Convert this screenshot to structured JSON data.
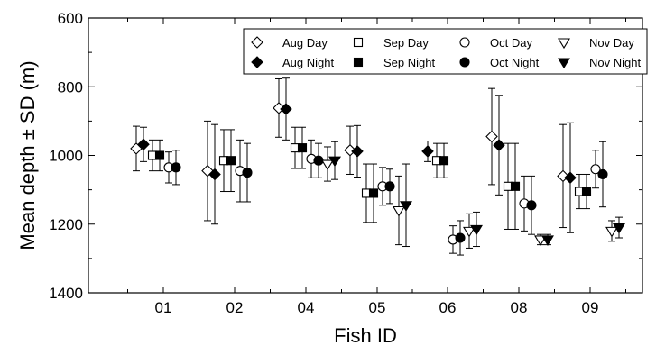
{
  "chart_data": {
    "type": "scatter",
    "title": "",
    "xlabel": "Fish ID",
    "ylabel": "Mean depth ± SD (m)",
    "categories": [
      "01",
      "02",
      "04",
      "05",
      "06",
      "08",
      "09"
    ],
    "ylim": [
      600,
      1400
    ],
    "y_inverted": true,
    "yticks": [
      600,
      800,
      1000,
      1200,
      1400
    ],
    "grid": false,
    "legend_position": "top-right",
    "series": [
      {
        "name": "Aug Day",
        "marker": "diamond",
        "filled": false,
        "mean": [
          980,
          1045,
          862,
          985,
          null,
          945,
          1060
        ],
        "sd": [
          65,
          145,
          85,
          70,
          null,
          140,
          150
        ]
      },
      {
        "name": "Aug Night",
        "marker": "diamond",
        "filled": true,
        "mean": [
          968,
          1055,
          865,
          988,
          988,
          970,
          1065
        ],
        "sd": [
          50,
          145,
          90,
          75,
          30,
          145,
          160
        ]
      },
      {
        "name": "Sep Day",
        "marker": "square",
        "filled": false,
        "mean": [
          1000,
          1015,
          978,
          1110,
          1015,
          1090,
          1105
        ],
        "sd": [
          45,
          90,
          60,
          85,
          50,
          125,
          50
        ]
      },
      {
        "name": "Sep Night",
        "marker": "square",
        "filled": true,
        "mean": [
          1000,
          1015,
          978,
          1110,
          1015,
          1090,
          1105
        ],
        "sd": [
          45,
          90,
          60,
          85,
          50,
          125,
          50
        ]
      },
      {
        "name": "Oct Day",
        "marker": "circle",
        "filled": false,
        "mean": [
          1035,
          1045,
          1010,
          1090,
          1245,
          1140,
          1040
        ],
        "sd": [
          45,
          90,
          55,
          55,
          40,
          80,
          55
        ]
      },
      {
        "name": "Oct Night",
        "marker": "circle",
        "filled": true,
        "mean": [
          1035,
          1050,
          1015,
          1090,
          1240,
          1145,
          1055
        ],
        "sd": [
          50,
          85,
          50,
          50,
          50,
          85,
          95
        ]
      },
      {
        "name": "Nov Day",
        "marker": "triangle-down",
        "filled": false,
        "mean": [
          null,
          null,
          1025,
          1160,
          1220,
          1245,
          1220
        ],
        "sd": [
          null,
          null,
          50,
          100,
          50,
          15,
          30
        ]
      },
      {
        "name": "Nov Night",
        "marker": "triangle-down",
        "filled": true,
        "mean": [
          null,
          null,
          1015,
          1145,
          1215,
          1245,
          1210
        ],
        "sd": [
          null,
          null,
          55,
          120,
          50,
          15,
          30
        ]
      }
    ]
  }
}
